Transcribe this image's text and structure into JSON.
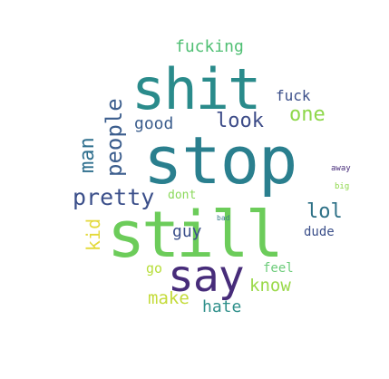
{
  "words": {
    "stop": {
      "text": "stop",
      "color": "#2a7f8e"
    },
    "shit": {
      "text": "shit",
      "color": "#2a8b8b"
    },
    "still": {
      "text": "still",
      "color": "#6ccc5a"
    },
    "say": {
      "text": "say",
      "color": "#472c7a"
    },
    "pretty": {
      "text": "pretty",
      "color": "#3b4f8a"
    },
    "people": {
      "text": "people",
      "color": "#3b5d8d"
    },
    "man": {
      "text": "man",
      "color": "#2f6f8e"
    },
    "fucking": {
      "text": "fucking",
      "color": "#4fbf73"
    },
    "fuck": {
      "text": "fuck",
      "color": "#3b4f8a"
    },
    "one": {
      "text": "one",
      "color": "#8ed84a"
    },
    "look": {
      "text": "look",
      "color": "#3d4c88"
    },
    "good": {
      "text": "good",
      "color": "#3b5d8d"
    },
    "lol": {
      "text": "lol",
      "color": "#2d7086"
    },
    "dude": {
      "text": "dude",
      "color": "#3b4f8a"
    },
    "kid": {
      "text": "kid",
      "color": "#e3d93a"
    },
    "guy": {
      "text": "guy",
      "color": "#3b4f8a"
    },
    "dont": {
      "text": "dont",
      "color": "#8ad95a"
    },
    "know": {
      "text": "know",
      "color": "#9ad94a"
    },
    "feel": {
      "text": "feel",
      "color": "#6ccc7a"
    },
    "make": {
      "text": "make",
      "color": "#c4db3a"
    },
    "go": {
      "text": "go",
      "color": "#b7de3a"
    },
    "hate": {
      "text": "hate",
      "color": "#2e8f8a"
    },
    "away": {
      "text": "away",
      "color": "#472c7a"
    },
    "big": {
      "text": "big",
      "color": "#8ed84a"
    },
    "bad": {
      "text": "bad",
      "color": "#3b7a8a"
    }
  }
}
